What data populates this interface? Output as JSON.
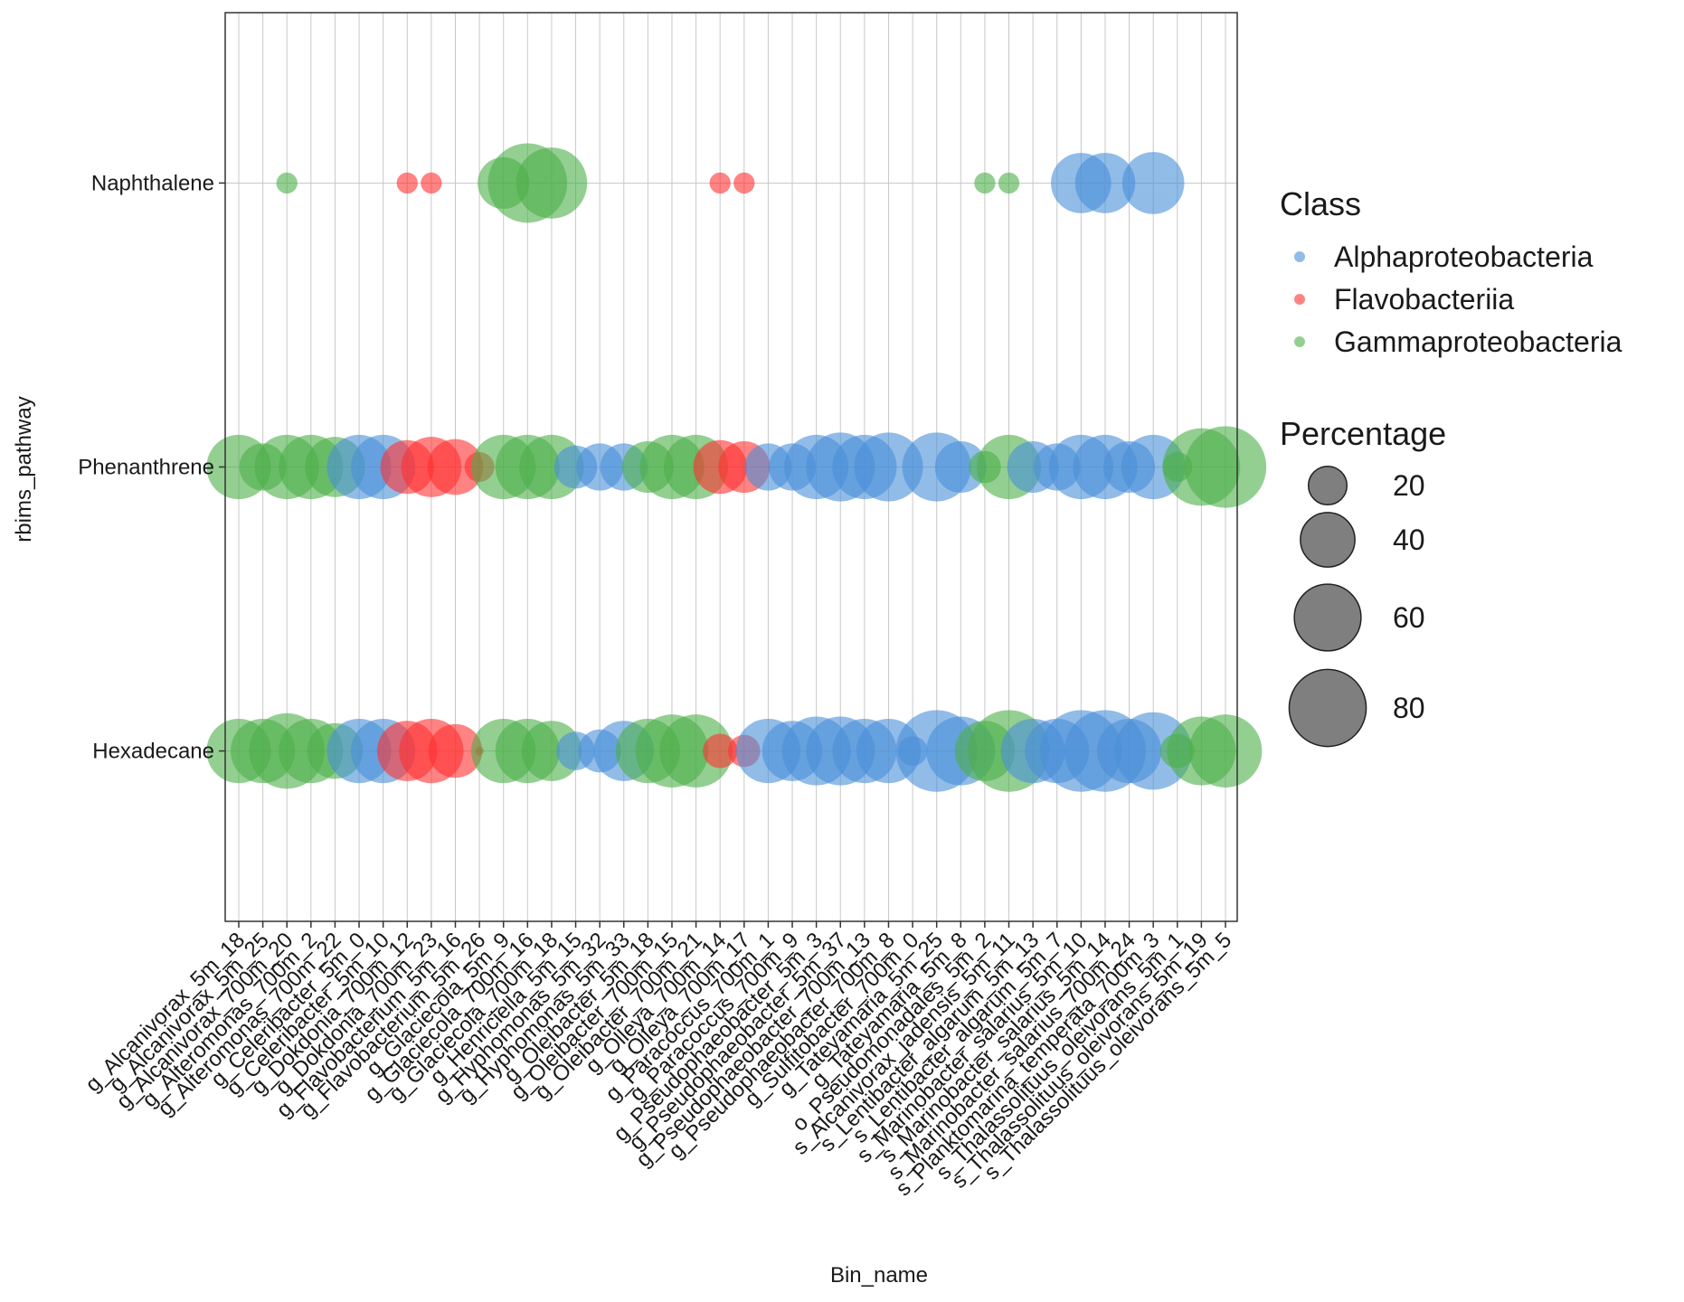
{
  "chart_data": {
    "type": "bubble",
    "x_label": "Bin_name",
    "y_label": "rbims_pathway",
    "categories": [
      "g_Alcanivorax_5m_18",
      "g_Alcanivorax_5m_25",
      "g_Alcanivorax_700m_20",
      "g_Alteromonas_700m_2",
      "g_Alteromonas_700m_22",
      "g_Celeribacter_5m_0",
      "g_Celeribacter_5m_10",
      "g_Dokdonia_700m_12",
      "g_Dokdonia_700m_23",
      "g_Flavobacterium_5m_16",
      "g_Flavobacterium_5m_26",
      "g_Glaciecola_5m_9",
      "g_Glaciecola_700m_16",
      "g_Glaciecola_700m_18",
      "g_Henriciella_5m_15",
      "g_Hyphomonas_5m_32",
      "g_Hyphomonas_5m_33",
      "g_Oleibacter_5m_18",
      "g_Oleibacter_700m_15",
      "g_Oleibacter_700m_21",
      "g_Olleya_700m_14",
      "g_Olleya_700m_17",
      "g_Paracoccus_700m_1",
      "g_Paracoccus_700m_9",
      "g_Pseudophaeobacter_5m_3",
      "g_Pseudophaeobacter_5m_37",
      "g_Pseudophaeobacter_700m_13",
      "g_Pseudophaeobacter_700m_8",
      "g_Sulfitobacter_700m_0",
      "g_Tateyamaria_5m_25",
      "g_Tateyamaria_5m_8",
      "o_Pseudomonadales_5m_2",
      "s_Alcanivorax_jadensis_5m_11",
      "s_Lentibacter_algarum_5m_13",
      "s_Lentibacter_algarum_5m_7",
      "s_Marinobacter_salarius_5m_10",
      "s_Marinobacter_salarius_5m_14",
      "s_Marinobacter_salarius_700m_24",
      "s_Planktomarina_temperata_700m_3",
      "s_Thalassolituus_oleivorans_5m_1",
      "s_Thalassolituus_oleivorans_5m_19",
      "s_Thalassolituus_oleivorans_5m_5"
    ],
    "category_class": [
      "Gammaproteobacteria",
      "Gammaproteobacteria",
      "Gammaproteobacteria",
      "Gammaproteobacteria",
      "Gammaproteobacteria",
      "Alphaproteobacteria",
      "Alphaproteobacteria",
      "Flavobacteriia",
      "Flavobacteriia",
      "Flavobacteriia",
      "Flavobacteriia",
      "Gammaproteobacteria",
      "Gammaproteobacteria",
      "Gammaproteobacteria",
      "Alphaproteobacteria",
      "Alphaproteobacteria",
      "Alphaproteobacteria",
      "Gammaproteobacteria",
      "Gammaproteobacteria",
      "Gammaproteobacteria",
      "Flavobacteriia",
      "Flavobacteriia",
      "Alphaproteobacteria",
      "Alphaproteobacteria",
      "Alphaproteobacteria",
      "Alphaproteobacteria",
      "Alphaproteobacteria",
      "Alphaproteobacteria",
      "Alphaproteobacteria",
      "Alphaproteobacteria",
      "Alphaproteobacteria",
      "Gammaproteobacteria",
      "Gammaproteobacteria",
      "Alphaproteobacteria",
      "Alphaproteobacteria",
      "Alphaproteobacteria",
      "Alphaproteobacteria",
      "Alphaproteobacteria",
      "Alphaproteobacteria",
      "Gammaproteobacteria",
      "Gammaproteobacteria",
      "Gammaproteobacteria"
    ],
    "series": [
      {
        "name": "Alphaproteobacteria",
        "color": "#4a8fd8"
      },
      {
        "name": "Flavobacteriia",
        "color": "#ff3030"
      },
      {
        "name": "Gammaproteobacteria",
        "color": "#4daf4a"
      }
    ],
    "legend_title": "Class",
    "rows": [
      {
        "name": "Naphthalene",
        "values": [
          null,
          null,
          6,
          null,
          null,
          null,
          null,
          6,
          6,
          null,
          null,
          36,
          85,
          68,
          null,
          null,
          null,
          null,
          null,
          null,
          6,
          6,
          null,
          null,
          null,
          null,
          null,
          null,
          null,
          null,
          null,
          6,
          6,
          null,
          null,
          49,
          49,
          null,
          52,
          null,
          null,
          null
        ]
      },
      {
        "name": "Phenanthrene",
        "values": [
          56,
          30,
          56,
          56,
          49,
          56,
          56,
          39,
          49,
          42,
          12,
          56,
          56,
          56,
          25,
          30,
          30,
          36,
          56,
          56,
          39,
          36,
          30,
          30,
          56,
          64,
          56,
          64,
          null,
          64,
          36,
          14,
          56,
          36,
          30,
          56,
          56,
          36,
          56,
          12,
          81,
          90
        ]
      },
      {
        "name": "Hexadecane",
        "values": [
          56,
          56,
          77,
          56,
          42,
          56,
          56,
          49,
          56,
          39,
          1,
          56,
          56,
          49,
          20,
          25,
          49,
          56,
          72,
          72,
          16,
          14,
          56,
          49,
          64,
          64,
          56,
          56,
          12,
          90,
          64,
          49,
          90,
          56,
          56,
          90,
          90,
          56,
          81,
          16,
          64,
          72
        ]
      }
    ],
    "size_legend": {
      "title": "Percentage",
      "values": [
        20,
        40,
        60,
        80
      ]
    },
    "grid": true,
    "alpha": 0.6
  }
}
